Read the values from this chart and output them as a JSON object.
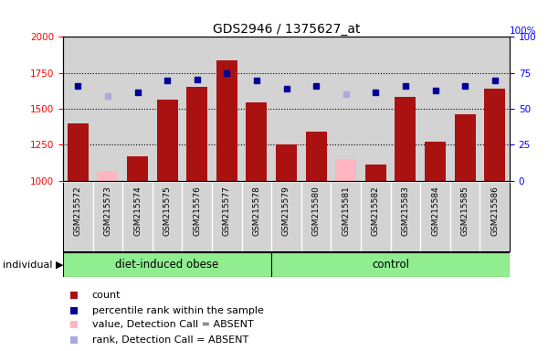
{
  "title": "GDS2946 / 1375627_at",
  "samples": [
    "GSM215572",
    "GSM215573",
    "GSM215574",
    "GSM215575",
    "GSM215576",
    "GSM215577",
    "GSM215578",
    "GSM215579",
    "GSM215580",
    "GSM215581",
    "GSM215582",
    "GSM215583",
    "GSM215584",
    "GSM215585",
    "GSM215586"
  ],
  "bar_values": [
    1400,
    1070,
    1170,
    1565,
    1650,
    1840,
    1545,
    1250,
    1340,
    1150,
    1115,
    1580,
    1270,
    1460,
    1640
  ],
  "bar_absent": [
    false,
    true,
    false,
    false,
    false,
    false,
    false,
    false,
    false,
    true,
    false,
    false,
    false,
    false,
    false
  ],
  "rank_values": [
    66,
    59,
    61.5,
    70,
    70.5,
    74.5,
    69.5,
    64,
    66,
    60,
    61.5,
    66,
    63,
    66,
    70
  ],
  "rank_absent": [
    false,
    true,
    false,
    false,
    false,
    false,
    false,
    false,
    false,
    true,
    false,
    false,
    false,
    false,
    false
  ],
  "groups": [
    {
      "label": "diet-induced obese",
      "start": 0,
      "end": 7
    },
    {
      "label": "control",
      "start": 7,
      "end": 15
    }
  ],
  "ylim_left": [
    1000,
    2000
  ],
  "ylim_right": [
    0,
    100
  ],
  "yticks_left": [
    1000,
    1250,
    1500,
    1750,
    2000
  ],
  "yticks_right": [
    0,
    25,
    50,
    75,
    100
  ],
  "bar_color_normal": "#aa1111",
  "bar_color_absent": "#ffb6c1",
  "rank_color_normal": "#000099",
  "rank_color_absent": "#aaaadd",
  "chart_bg": "#d3d3d3",
  "label_bg": "#d3d3d3",
  "group_color": "#90ee90",
  "group_label_text": "individual"
}
